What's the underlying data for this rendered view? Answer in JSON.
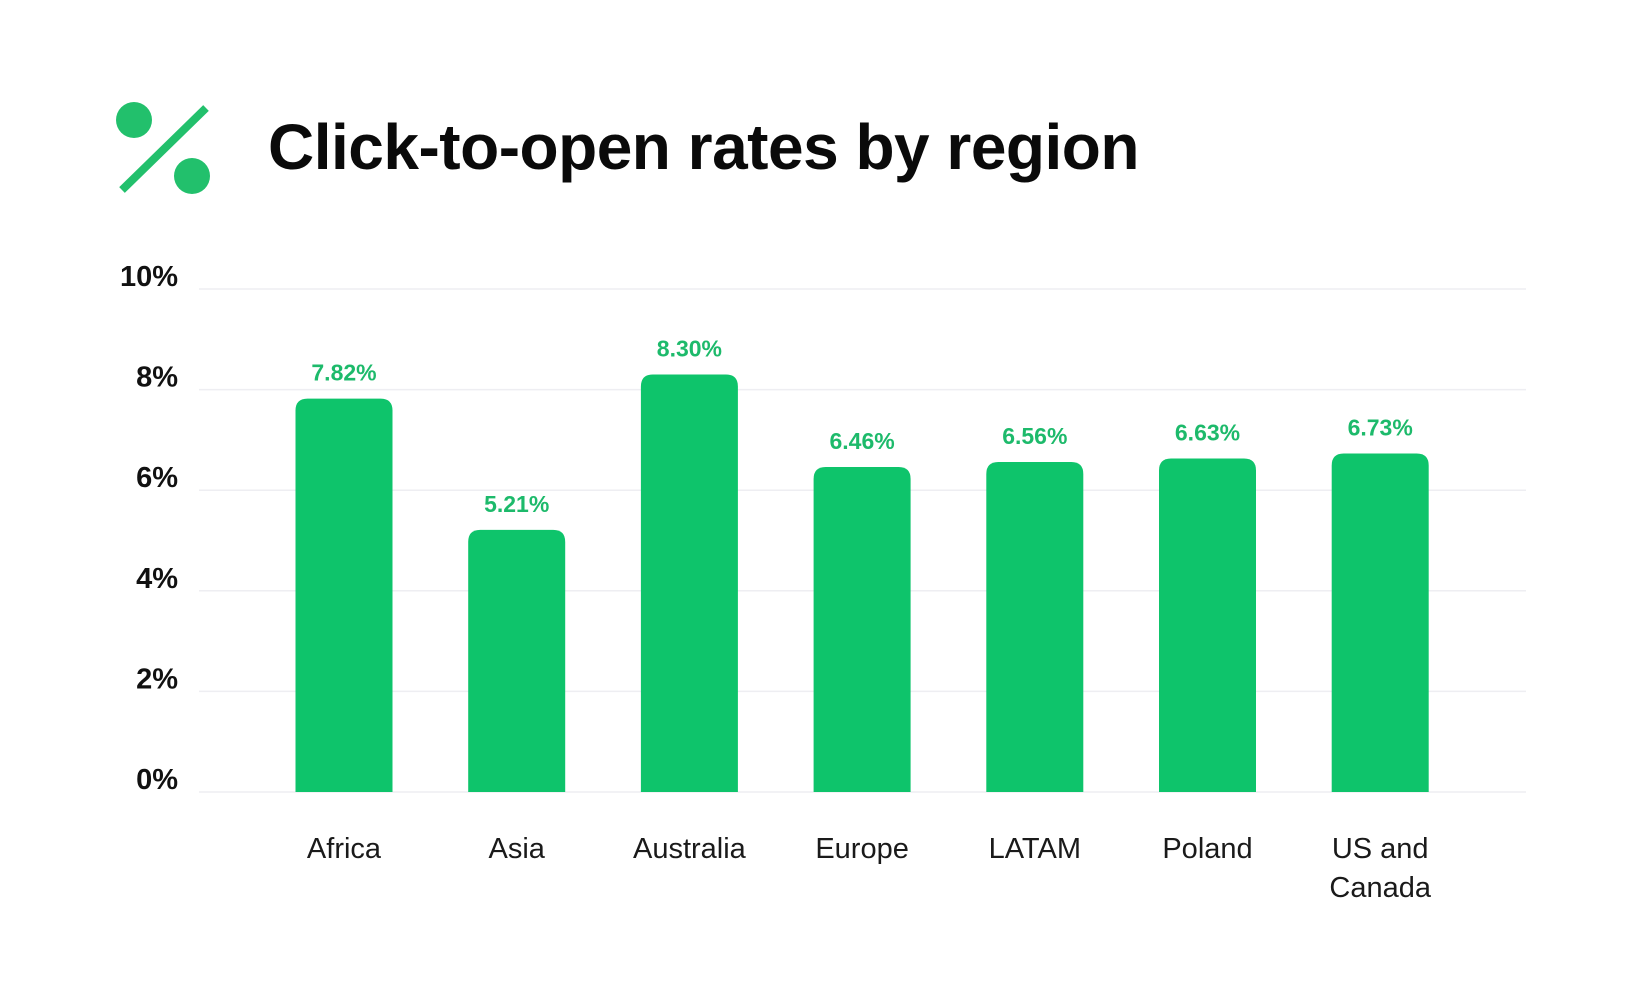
{
  "chart_data": {
    "type": "bar",
    "title": "Click-to-open rates by region",
    "categories": [
      "Africa",
      "Asia",
      "Australia",
      "Europe",
      "LATAM",
      "Poland",
      "US and Canada"
    ],
    "category_lines": [
      [
        "Africa"
      ],
      [
        "Asia"
      ],
      [
        "Australia"
      ],
      [
        "Europe"
      ],
      [
        "LATAM"
      ],
      [
        "Poland"
      ],
      [
        "US and",
        "Canada"
      ]
    ],
    "values": [
      7.82,
      5.21,
      8.3,
      6.46,
      6.56,
      6.63,
      6.73
    ],
    "data_labels": [
      "7.82%",
      "5.21%",
      "8.30%",
      "6.46%",
      "6.56%",
      "6.63%",
      "6.73%"
    ],
    "ylim": [
      0,
      10
    ],
    "yticks": [
      0,
      2,
      4,
      6,
      8,
      10
    ],
    "ytick_labels": [
      "0%",
      "2%",
      "4%",
      "6%",
      "8%",
      "10%"
    ],
    "xlabel": "",
    "ylabel": "",
    "grid": true,
    "legend": "none",
    "colors": {
      "bar": "#0EC46B",
      "data_label": "#1DBA6B",
      "icon": "#22C06C",
      "grid": "#EEEEF2"
    }
  },
  "header": {
    "icon": "percent-icon"
  }
}
